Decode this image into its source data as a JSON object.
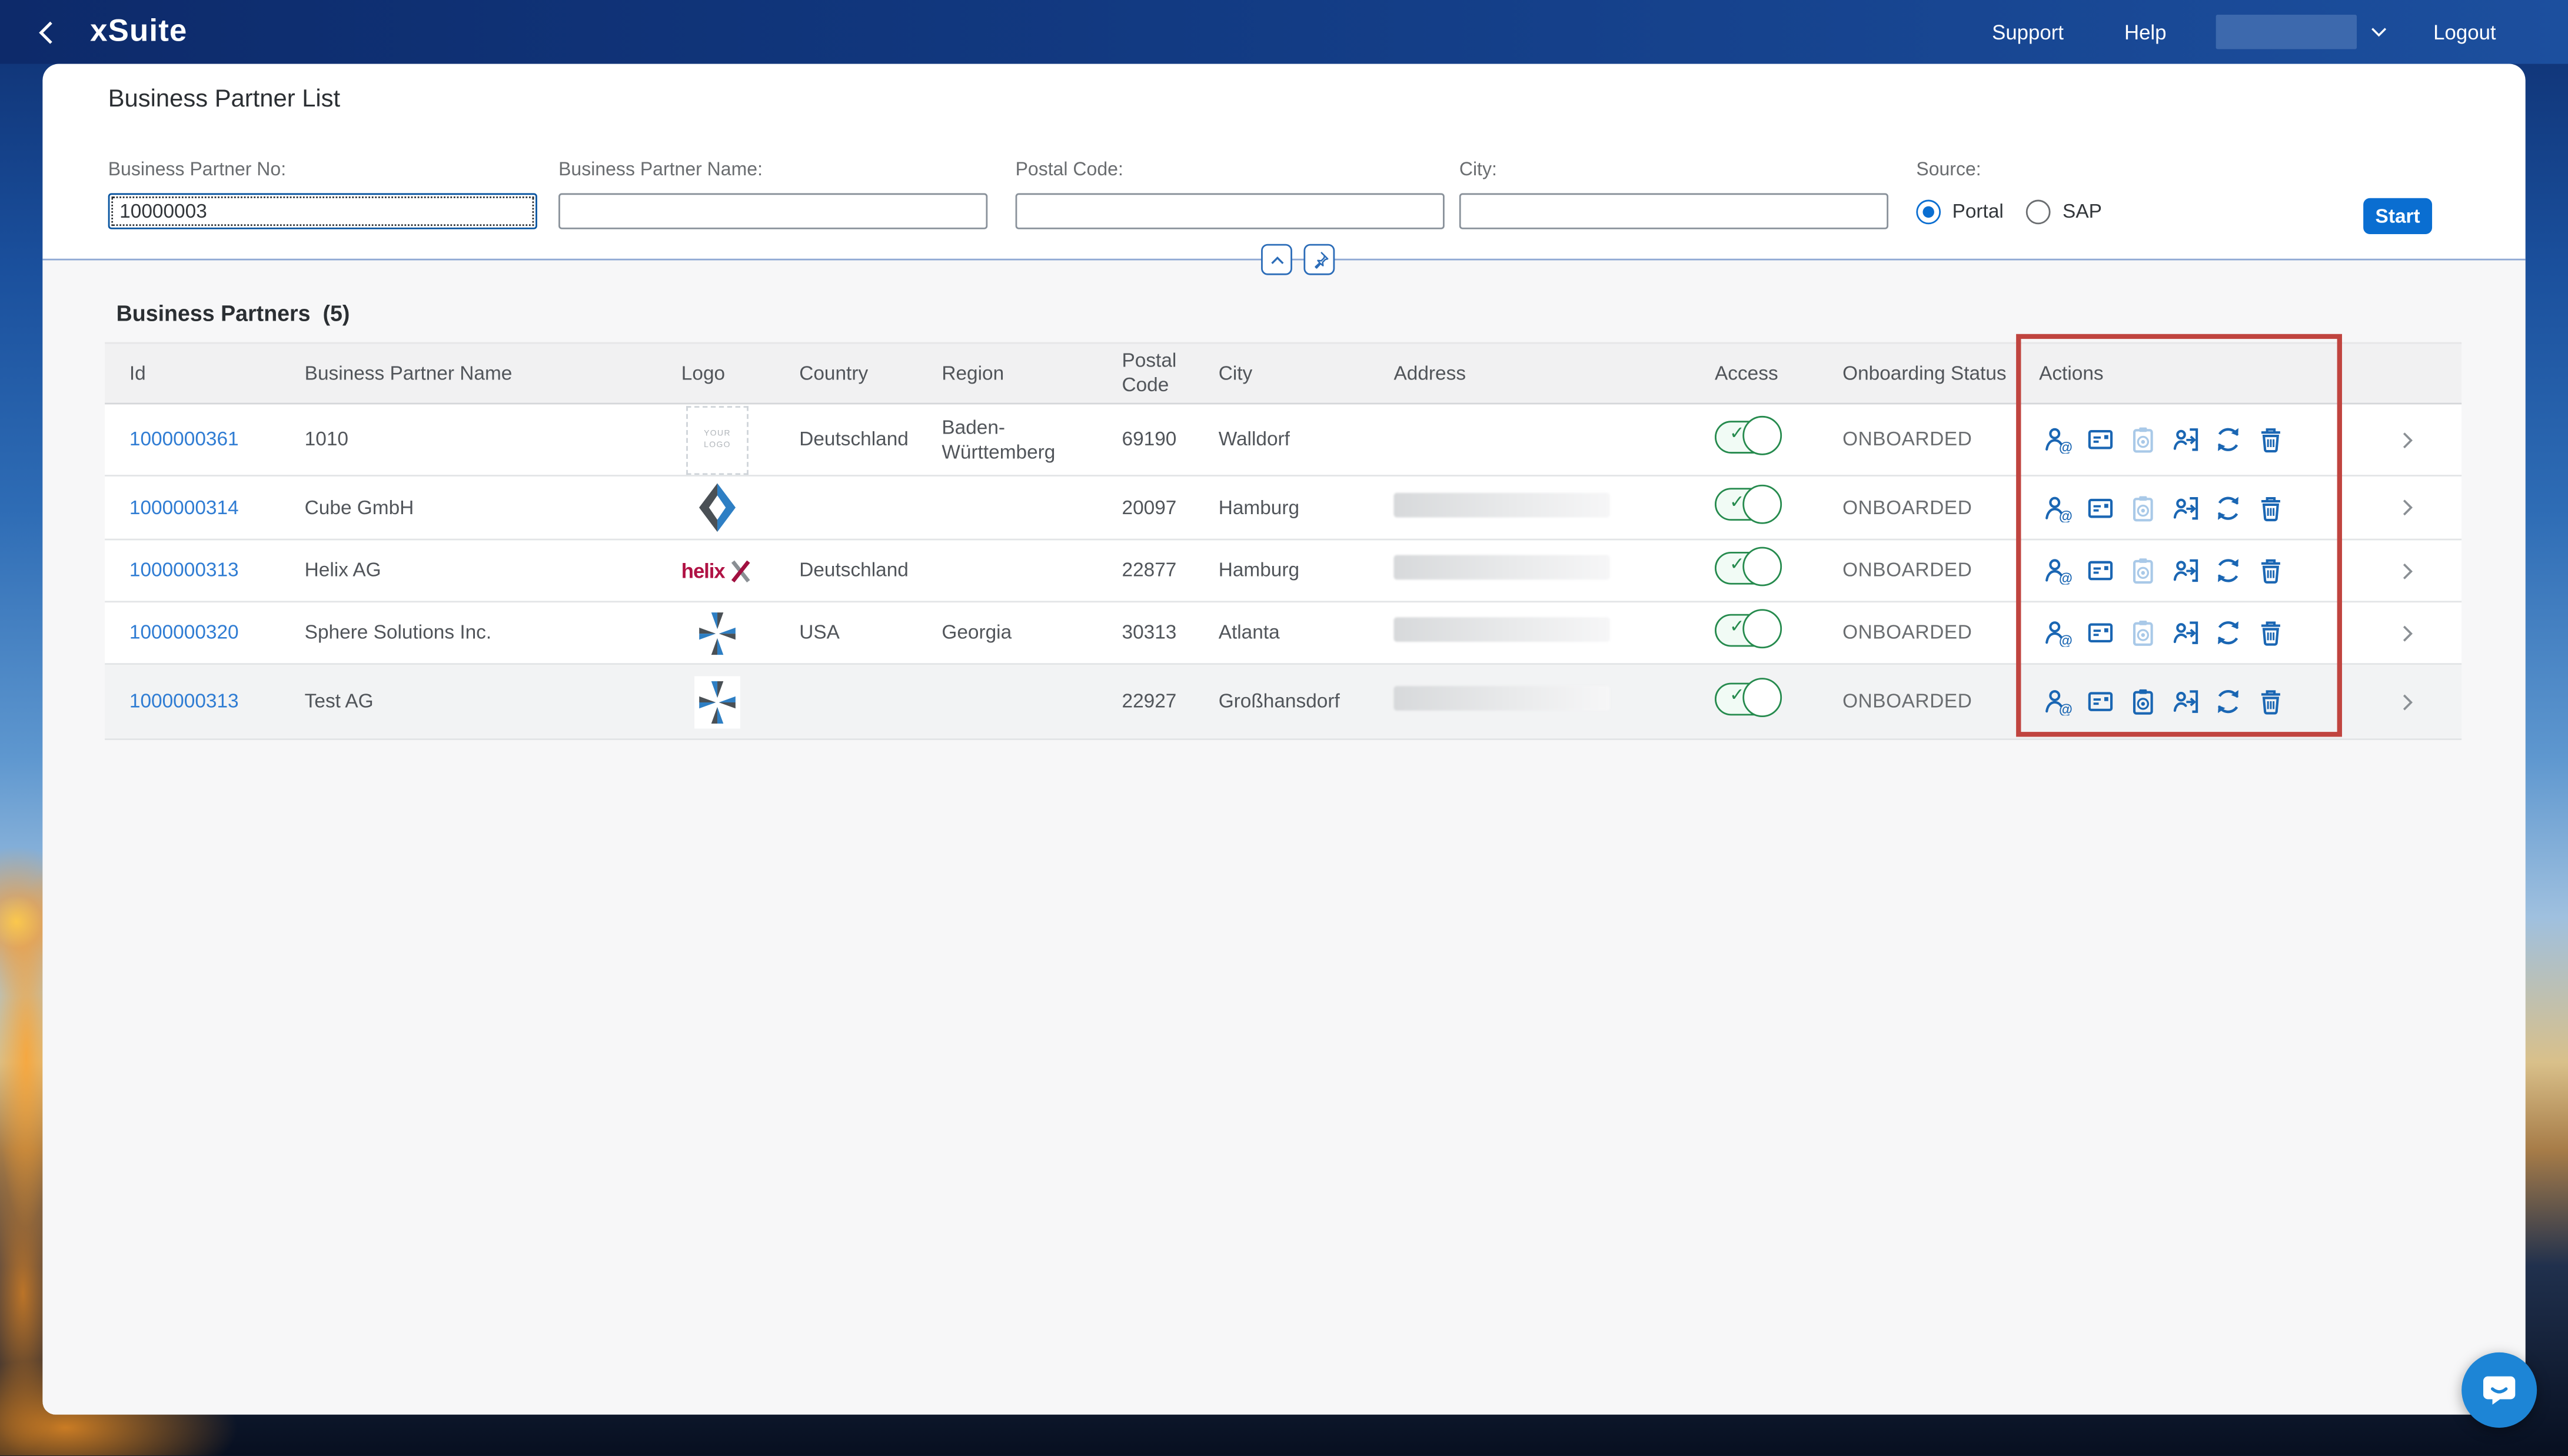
{
  "topbar": {
    "brand": "xSuite",
    "support": "Support",
    "help": "Help",
    "logout": "Logout"
  },
  "page": {
    "title": "Business Partner List"
  },
  "filters": {
    "bp_no": {
      "label": "Business Partner No:",
      "value": "10000003"
    },
    "bp_name": {
      "label": "Business Partner Name:",
      "value": ""
    },
    "postal": {
      "label": "Postal Code:",
      "value": ""
    },
    "city": {
      "label": "City:",
      "value": ""
    },
    "source": {
      "label": "Source:",
      "options": [
        {
          "label": "Portal",
          "selected": true
        },
        {
          "label": "SAP",
          "selected": false
        }
      ]
    },
    "start_label": "Start"
  },
  "section": {
    "title": "Business Partners",
    "count": "(5)"
  },
  "table": {
    "headers": {
      "id": "Id",
      "name": "Business Partner Name",
      "logo": "Logo",
      "country": "Country",
      "region": "Region",
      "postal": "Postal Code",
      "city": "City",
      "address": "Address",
      "access": "Access",
      "status": "Onboarding Status",
      "actions": "Actions",
      "nav": ""
    },
    "action_icons": [
      "user-contact-icon",
      "email-icon",
      "clipboard-icon",
      "user-transfer-icon",
      "refresh-icon",
      "delete-icon"
    ],
    "rows": [
      {
        "id": "1000000361",
        "name": "1010",
        "logo": "placeholder",
        "logo_text": "YOUR LOGO",
        "country": "Deutschland",
        "region": "Baden-Württemberg",
        "postal": "69190",
        "city": "Walldorf",
        "address_redacted": false,
        "access_on": true,
        "status": "ONBOARDED",
        "disabled_actions": [
          "clipboard-icon"
        ]
      },
      {
        "id": "1000000314",
        "name": "Cube GmbH",
        "logo": "cube",
        "logo_text": "",
        "country": "",
        "region": "",
        "postal": "20097",
        "city": "Hamburg",
        "address_redacted": true,
        "access_on": true,
        "status": "ONBOARDED",
        "disabled_actions": [
          "clipboard-icon"
        ]
      },
      {
        "id": "1000000313",
        "name": "Helix AG",
        "logo": "helix",
        "logo_text": "helix",
        "country": "Deutschland",
        "region": "",
        "postal": "22877",
        "city": "Hamburg",
        "address_redacted": true,
        "access_on": true,
        "status": "ONBOARDED",
        "disabled_actions": [
          "clipboard-icon"
        ]
      },
      {
        "id": "1000000320",
        "name": "Sphere Solutions Inc.",
        "logo": "pinwheel",
        "logo_text": "",
        "country": "USA",
        "region": "Georgia",
        "postal": "30313",
        "city": "Atlanta",
        "address_redacted": true,
        "access_on": true,
        "status": "ONBOARDED",
        "disabled_actions": [
          "clipboard-icon"
        ]
      },
      {
        "id": "1000000313",
        "name": "Test AG",
        "logo": "pinwheel",
        "logo_text": "",
        "country": "",
        "region": "",
        "postal": "22927",
        "city": "Großhansdorf",
        "address_redacted": true,
        "access_on": true,
        "status": "ONBOARDED",
        "disabled_actions": []
      }
    ]
  },
  "colors": {
    "accent": "#0a6ed1",
    "toggle_green": "#258a4d",
    "annotation_red": "#c0443f",
    "link_blue": "#2f7cd3",
    "topbar_navy": "#123a82"
  }
}
